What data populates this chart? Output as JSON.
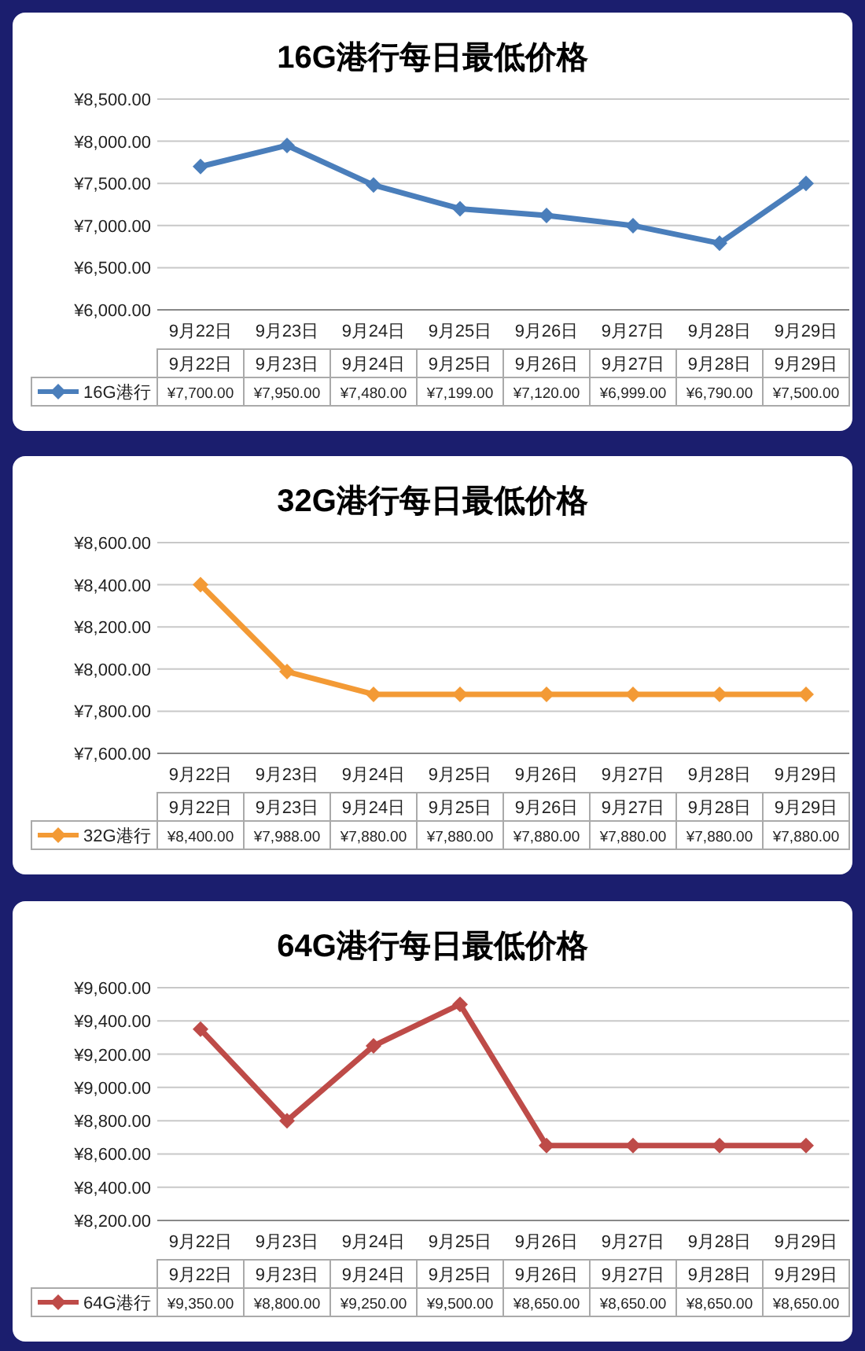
{
  "chart_data": [
    {
      "type": "line",
      "title": "16G港行每日最低价格",
      "categories": [
        "9月22日",
        "9月23日",
        "9月24日",
        "9月25日",
        "9月26日",
        "9月27日",
        "9月28日",
        "9月29日"
      ],
      "series": [
        {
          "name": "16G港行",
          "color": "#4a7ebb",
          "values": [
            7700,
            7950,
            7480,
            7199,
            7120,
            6999,
            6790,
            7500
          ],
          "value_labels": [
            "¥7,700.00",
            "¥7,950.00",
            "¥7,480.00",
            "¥7,199.00",
            "¥7,120.00",
            "¥6,999.00",
            "¥6,790.00",
            "¥7,500.00"
          ]
        }
      ],
      "ylim": [
        6000,
        8500
      ],
      "yticks": [
        {
          "value": 6000,
          "label": "¥6,000.00"
        },
        {
          "value": 6500,
          "label": "¥6,500.00"
        },
        {
          "value": 7000,
          "label": "¥7,000.00"
        },
        {
          "value": 7500,
          "label": "¥7,500.00"
        },
        {
          "value": 8000,
          "label": "¥8,000.00"
        },
        {
          "value": 8500,
          "label": "¥8,500.00"
        }
      ],
      "grid": "y",
      "marker": "diamond",
      "legend": "bottom"
    },
    {
      "type": "line",
      "title": "32G港行每日最低价格",
      "categories": [
        "9月22日",
        "9月23日",
        "9月24日",
        "9月25日",
        "9月26日",
        "9月27日",
        "9月28日",
        "9月29日"
      ],
      "series": [
        {
          "name": "32G港行",
          "color": "#f39a35",
          "values": [
            8400,
            7988,
            7880,
            7880,
            7880,
            7880,
            7880,
            7880
          ],
          "value_labels": [
            "¥8,400.00",
            "¥7,988.00",
            "¥7,880.00",
            "¥7,880.00",
            "¥7,880.00",
            "¥7,880.00",
            "¥7,880.00",
            "¥7,880.00"
          ]
        }
      ],
      "ylim": [
        7600,
        8600
      ],
      "yticks": [
        {
          "value": 7600,
          "label": "¥7,600.00"
        },
        {
          "value": 7800,
          "label": "¥7,800.00"
        },
        {
          "value": 8000,
          "label": "¥8,000.00"
        },
        {
          "value": 8200,
          "label": "¥8,200.00"
        },
        {
          "value": 8400,
          "label": "¥8,400.00"
        },
        {
          "value": 8600,
          "label": "¥8,600.00"
        }
      ],
      "grid": "y",
      "marker": "diamond",
      "legend": "bottom"
    },
    {
      "type": "line",
      "title": "64G港行每日最低价格",
      "categories": [
        "9月22日",
        "9月23日",
        "9月24日",
        "9月25日",
        "9月26日",
        "9月27日",
        "9月28日",
        "9月29日"
      ],
      "series": [
        {
          "name": "64G港行",
          "color": "#be4b48",
          "values": [
            9350,
            8800,
            9250,
            9500,
            8650,
            8650,
            8650,
            8650
          ],
          "value_labels": [
            "¥9,350.00",
            "¥8,800.00",
            "¥9,250.00",
            "¥9,500.00",
            "¥8,650.00",
            "¥8,650.00",
            "¥8,650.00",
            "¥8,650.00"
          ]
        }
      ],
      "ylim": [
        8200,
        9600
      ],
      "yticks": [
        {
          "value": 8200,
          "label": "¥8,200.00"
        },
        {
          "value": 8400,
          "label": "¥8,400.00"
        },
        {
          "value": 8600,
          "label": "¥8,600.00"
        },
        {
          "value": 8800,
          "label": "¥8,800.00"
        },
        {
          "value": 9000,
          "label": "¥9,000.00"
        },
        {
          "value": 9200,
          "label": "¥9,200.00"
        },
        {
          "value": 9400,
          "label": "¥9,400.00"
        },
        {
          "value": 9600,
          "label": "¥9,600.00"
        }
      ],
      "grid": "y",
      "marker": "diamond",
      "legend": "bottom"
    }
  ]
}
